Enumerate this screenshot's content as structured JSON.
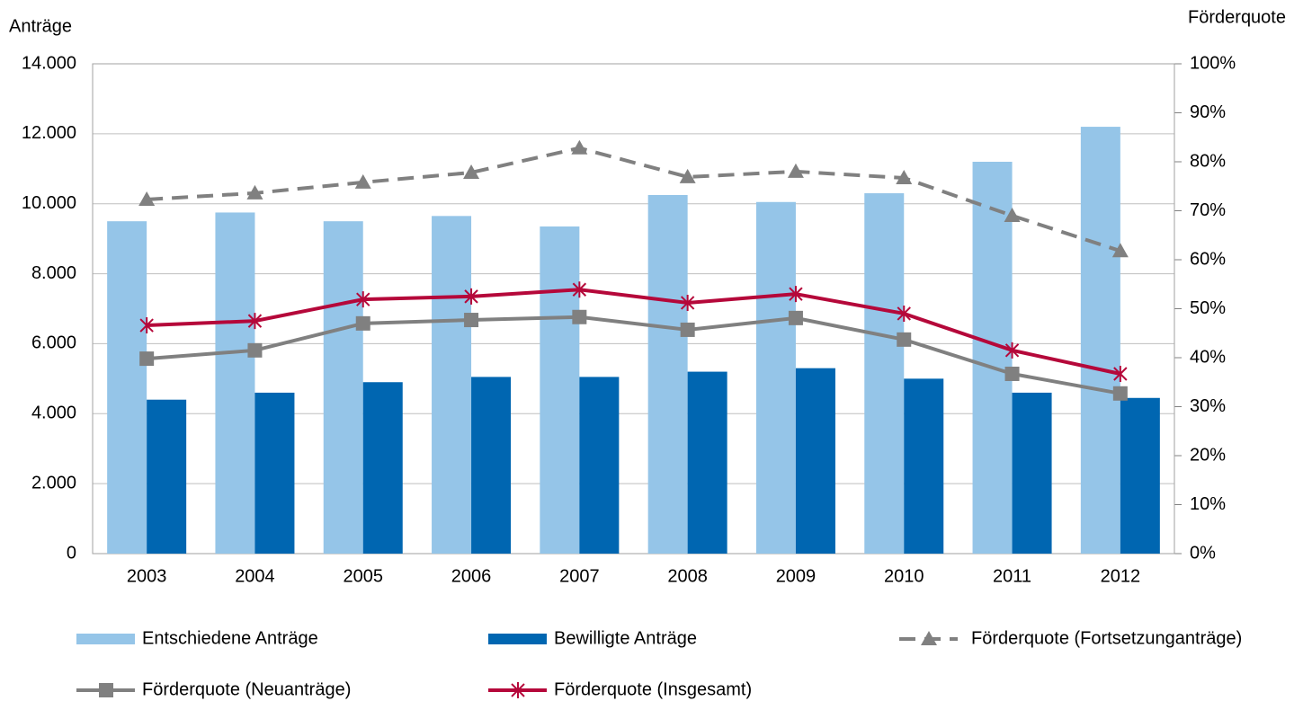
{
  "chart_data": {
    "type": "bar",
    "y_label": "Anträge",
    "y2_label": "Förderquote",
    "categories": [
      "2003",
      "2004",
      "2005",
      "2006",
      "2007",
      "2008",
      "2009",
      "2010",
      "2011",
      "2012"
    ],
    "series": [
      {
        "name": "Entschiedene Anträge",
        "type": "bar",
        "color": "#95c5e8",
        "values": [
          9500,
          9750,
          9500,
          9650,
          9350,
          10250,
          10050,
          10300,
          11200,
          12200
        ]
      },
      {
        "name": "Bewilligte Anträge",
        "type": "bar",
        "color": "#0066b1",
        "values": [
          4400,
          4600,
          4900,
          5050,
          5050,
          5200,
          5300,
          5000,
          4600,
          4450
        ]
      },
      {
        "name": "Förderquote (Fortsetzunganträge)",
        "type": "line",
        "axis": "y2",
        "color": "#808080",
        "dashed": true,
        "marker": "triangle",
        "values": [
          72.3,
          73.6,
          75.8,
          77.8,
          82.8,
          76.9,
          78.0,
          76.7,
          69.0,
          61.8
        ]
      },
      {
        "name": "Förderquote (Neuanträge)",
        "type": "line",
        "axis": "y2",
        "color": "#808080",
        "dashed": false,
        "marker": "square",
        "values": [
          39.8,
          41.5,
          47.0,
          47.7,
          48.3,
          45.7,
          48.1,
          43.7,
          36.7,
          32.7
        ]
      },
      {
        "name": "Förderquote (Insgesamt)",
        "type": "line",
        "axis": "y2",
        "color": "#b5083a",
        "dashed": false,
        "marker": "star",
        "values": [
          46.6,
          47.5,
          51.9,
          52.5,
          53.9,
          51.2,
          53.0,
          49.0,
          41.5,
          36.7
        ]
      }
    ],
    "ylim": [
      0,
      14000
    ],
    "yticks": [
      0,
      {
        "value": 2000,
        "label": "2.000"
      },
      {
        "value": 4000,
        "label": "4.000"
      },
      {
        "value": 6000,
        "label": "6.000"
      },
      {
        "value": 8000,
        "label": "8.000"
      },
      {
        "value": 10000,
        "label": "10.000"
      },
      {
        "value": 12000,
        "label": "12.000"
      },
      {
        "value": 14000,
        "label": "14.000"
      }
    ],
    "y2lim": [
      0,
      100
    ],
    "y2ticks": [
      {
        "value": 0,
        "label": "0%"
      },
      {
        "value": 10,
        "label": "10%"
      },
      {
        "value": 20,
        "label": "20%"
      },
      {
        "value": 30,
        "label": "30%"
      },
      {
        "value": 40,
        "label": "40%"
      },
      {
        "value": 50,
        "label": "50%"
      },
      {
        "value": 60,
        "label": "60%"
      },
      {
        "value": 70,
        "label": "70%"
      },
      {
        "value": 80,
        "label": "80%"
      },
      {
        "value": 90,
        "label": "90%"
      },
      {
        "value": 100,
        "label": "100%"
      }
    ],
    "grid": true,
    "legend": "bottom"
  }
}
